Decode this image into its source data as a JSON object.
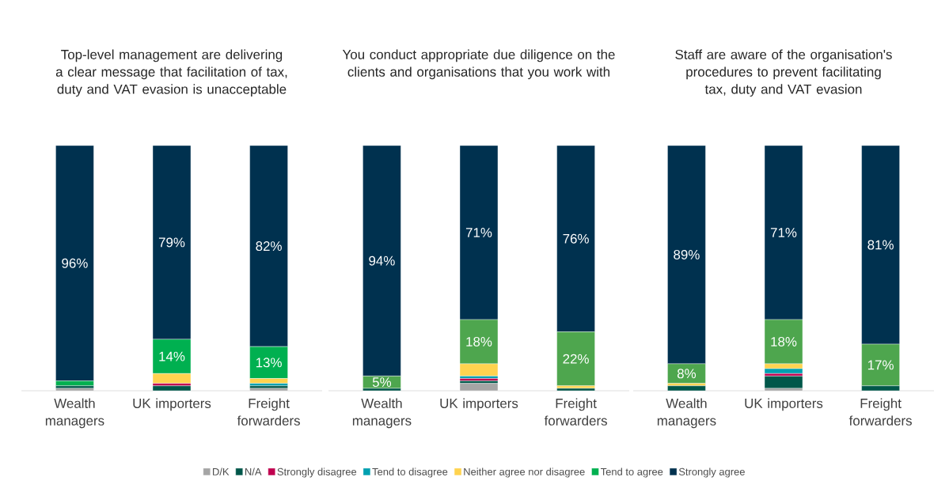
{
  "chart_data": [
    {
      "type": "bar",
      "stacked": true,
      "title": "Top-level management are delivering a clear message that facilitation of tax, duty and VAT evasion is unacceptable",
      "categories": [
        "Wealth managers",
        "UK importers",
        "Freight forwarders"
      ],
      "tick_labels": "x",
      "legend": "bottom",
      "series": [
        {
          "name": "D/K",
          "color": "#a5a5a5",
          "values": [
            1,
            0,
            1
          ]
        },
        {
          "name": "N/A",
          "color": "#00574a",
          "values": [
            1,
            2,
            1
          ]
        },
        {
          "name": "Strongly disagree",
          "color": "#c0004f",
          "values": [
            0,
            1,
            0
          ]
        },
        {
          "name": "Tend to disagree",
          "color": "#00a0b0",
          "values": [
            0,
            0,
            1
          ]
        },
        {
          "name": "Neither agree nor disagree",
          "color": "#ffd34f",
          "values": [
            0,
            4,
            2
          ]
        },
        {
          "name": "Tend to agree",
          "color": "#00b050",
          "values": [
            2,
            14,
            13
          ],
          "value_labels": [
            null,
            "14%",
            "13%"
          ]
        },
        {
          "name": "Strongly agree",
          "color": "#00314f",
          "values": [
            96,
            79,
            82
          ],
          "value_labels": [
            "96%",
            "79%",
            "82%"
          ]
        }
      ]
    },
    {
      "type": "bar",
      "stacked": true,
      "title": "You conduct appropriate due diligence on the clients and organisations that you work with",
      "categories": [
        "Wealth managers",
        "UK importers",
        "Freight forwarders"
      ],
      "tick_labels": "x",
      "series": [
        {
          "color": "#a5a5a5",
          "values": [
            0,
            3,
            0
          ]
        },
        {
          "color": "#00574a",
          "values": [
            1,
            1,
            1
          ]
        },
        {
          "color": "#c0004f",
          "values": [
            0,
            1,
            0
          ]
        },
        {
          "color": "#00a0b0",
          "values": [
            0,
            1,
            0
          ]
        },
        {
          "color": "#ffd34f",
          "values": [
            0,
            5,
            1
          ]
        },
        {
          "color": "#4ea64e",
          "values": [
            5,
            18,
            22
          ],
          "value_labels": [
            "5%",
            "18%",
            "22%"
          ]
        },
        {
          "color": "#00314f",
          "values": [
            94,
            71,
            76
          ],
          "value_labels": [
            "94%",
            "71%",
            "76%"
          ]
        }
      ]
    },
    {
      "type": "bar",
      "stacked": true,
      "title": "Staff are aware of the organisation's procedures to prevent facilitating tax, duty and VAT evasion",
      "categories": [
        "Wealth managers",
        "UK importers",
        "Freight forwarders"
      ],
      "tick_labels": "x",
      "series": [
        {
          "color": "#a5a5a5",
          "values": [
            0,
            1,
            0
          ]
        },
        {
          "color": "#00574a",
          "values": [
            2,
            5,
            2
          ]
        },
        {
          "color": "#c0004f",
          "values": [
            0,
            1,
            0
          ]
        },
        {
          "color": "#00a0b0",
          "values": [
            0,
            2,
            0
          ]
        },
        {
          "color": "#ffd34f",
          "values": [
            1,
            2,
            0
          ]
        },
        {
          "color": "#4ea64e",
          "values": [
            8,
            18,
            17
          ],
          "value_labels": [
            "8%",
            "18%",
            "17%"
          ]
        },
        {
          "color": "#00314f",
          "values": [
            89,
            71,
            81
          ],
          "value_labels": [
            "89%",
            "71%",
            "81%"
          ]
        }
      ]
    }
  ]
}
